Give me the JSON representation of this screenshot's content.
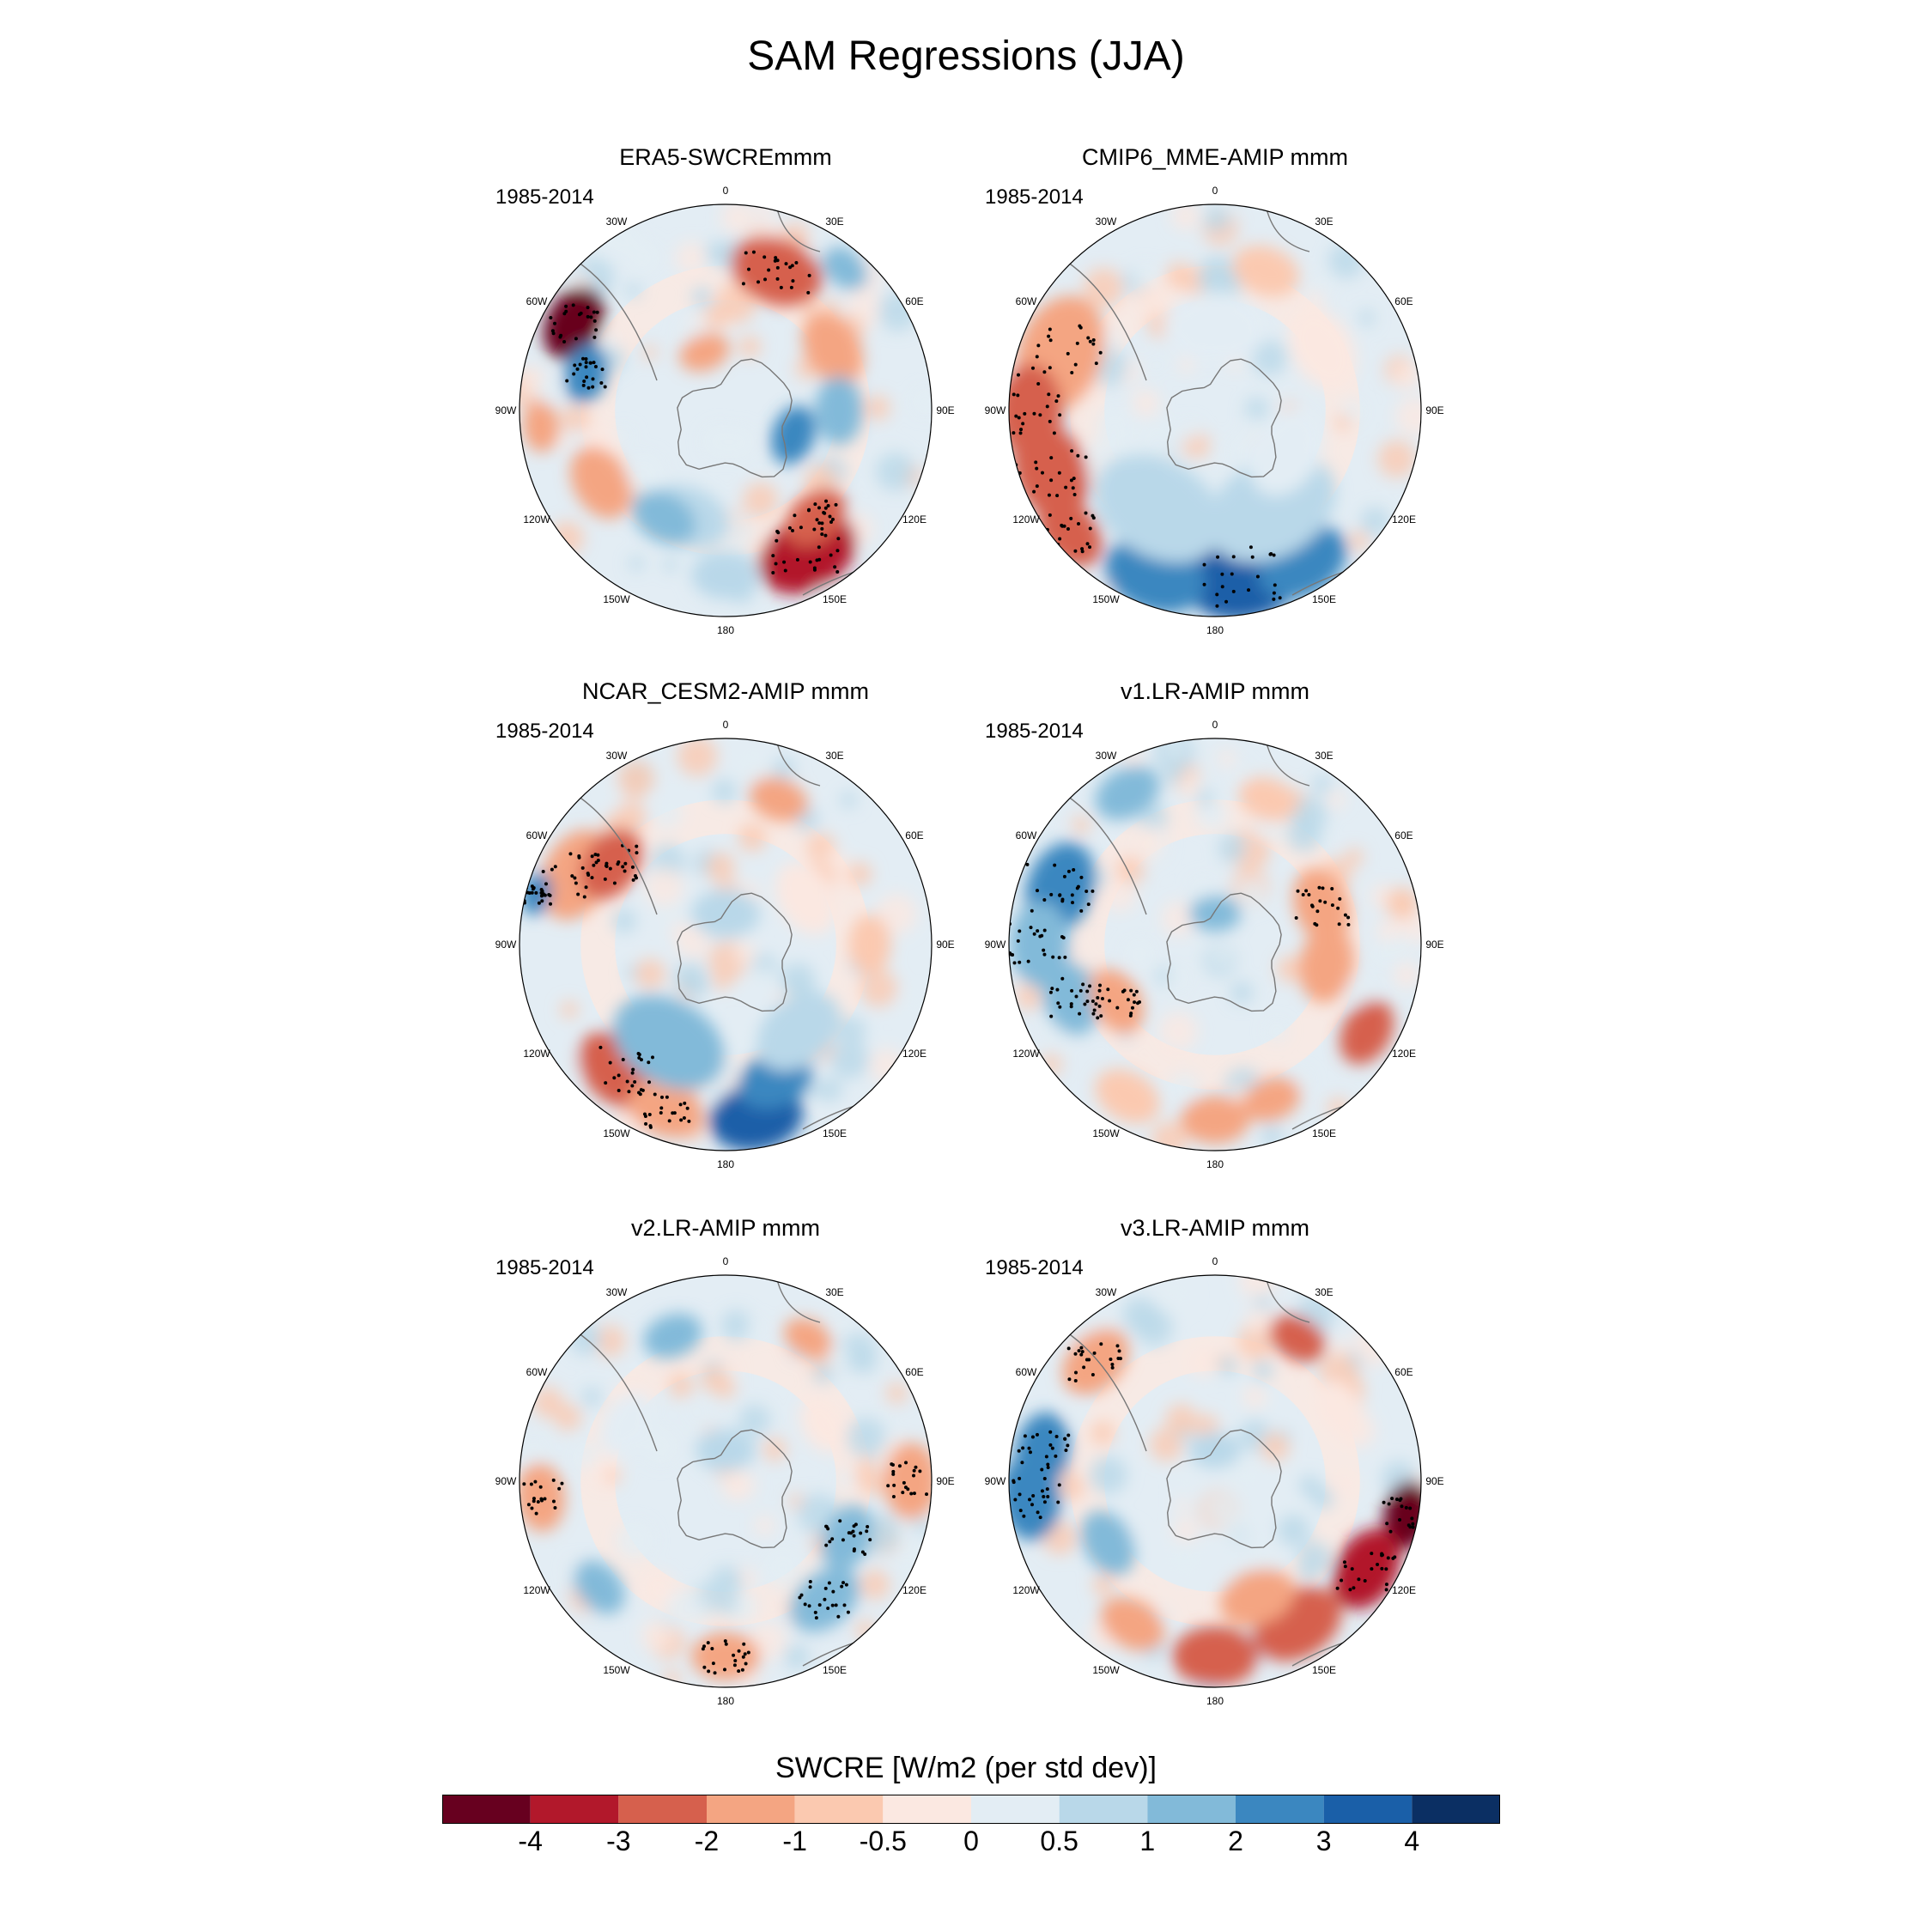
{
  "title": "SAM Regressions (JJA)",
  "colors": {
    "scale": [
      "#67001f",
      "#b2182b",
      "#d6604d",
      "#f4a582",
      "#fbc9b0",
      "#fbe8e1",
      "#e3edf4",
      "#b9d8e9",
      "#82bad9",
      "#3b87c0",
      "#1a5fa8",
      "#0b2f63"
    ]
  },
  "lon_labels": [
    "0",
    "30E",
    "60E",
    "90E",
    "120E",
    "150E",
    "180",
    "150W",
    "120W",
    "90W",
    "60W",
    "30W"
  ],
  "panels": [
    {
      "id": "era5",
      "title": "ERA5-SWCREmmm",
      "period": "1985-2014"
    },
    {
      "id": "cmip6",
      "title": "CMIP6_MME-AMIP  mmm",
      "period": "1985-2014"
    },
    {
      "id": "cesm2",
      "title": "NCAR_CESM2-AMIP  mmm",
      "period": "1985-2014"
    },
    {
      "id": "v1",
      "title": "v1.LR-AMIP  mmm",
      "period": "1985-2014"
    },
    {
      "id": "v2",
      "title": "v2.LR-AMIP  mmm",
      "period": "1985-2014"
    },
    {
      "id": "v3",
      "title": "v3.LR-AMIP  mmm",
      "period": "1985-2014"
    }
  ],
  "colorbar": {
    "title": "SWCRE [W/m2 (per std dev)]",
    "ticks": [
      "-4",
      "-3",
      "-2",
      "-1",
      "-0.5",
      "0",
      "0.5",
      "1",
      "2",
      "3",
      "4"
    ]
  }
}
